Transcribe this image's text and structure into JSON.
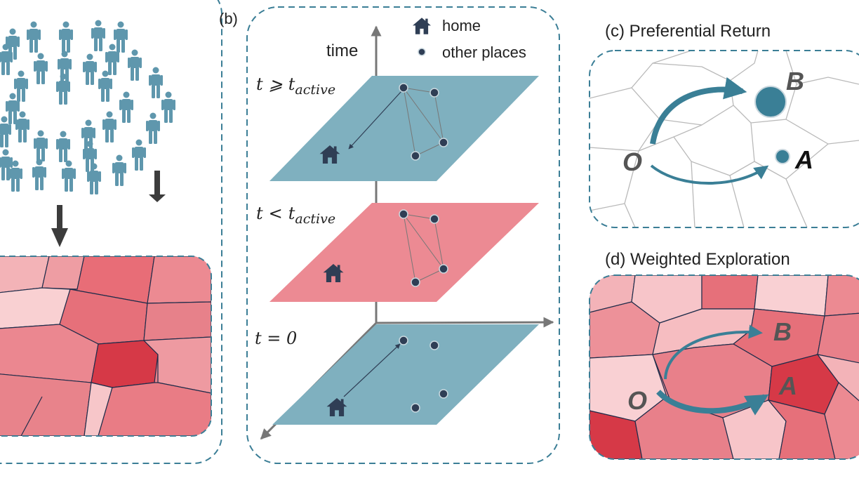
{
  "panel_b": {
    "label": "(b)",
    "axis_label": "time",
    "legend_home": "home",
    "legend_other": "other places",
    "layer_top_t": "t",
    "layer_top_rel": "⩾",
    "layer_top_sub": "t",
    "layer_top_subscript": "active",
    "layer_mid_t": "t",
    "layer_mid_rel": "<",
    "layer_mid_sub": "t",
    "layer_mid_subscript": "active",
    "layer_bot": "t = 0"
  },
  "panel_c": {
    "title": "(c) Preferential Return",
    "O": "O",
    "A": "A",
    "B": "B"
  },
  "panel_d": {
    "title": "(d) Weighted Exploration",
    "O": "O",
    "A": "A",
    "B": "B"
  },
  "colors": {
    "teal": "#3a7f96",
    "plane_blue": "#7fb0bf",
    "plane_pink": "#ec8a93",
    "dot": "#2f3e55",
    "dash": "#3b7e96",
    "person": "#5f97ad",
    "arrow_dark": "#3c3c3c"
  }
}
